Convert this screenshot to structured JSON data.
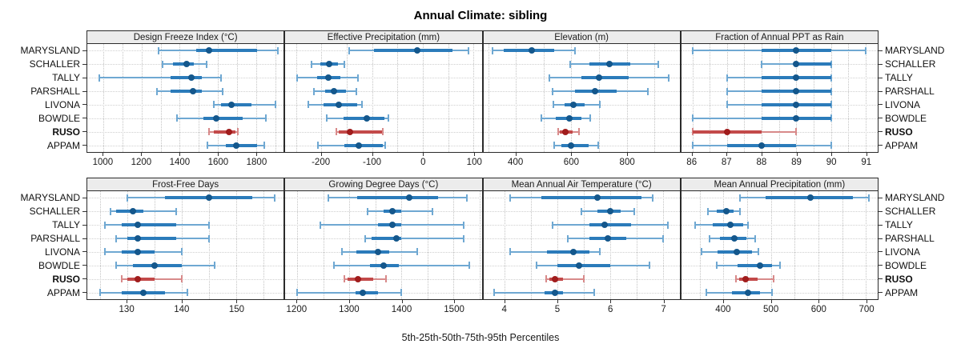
{
  "title": "Annual Climate: sibling",
  "caption": "5th-25th-50th-75th-95th Percentiles",
  "sites": [
    "MARYSLAND",
    "SCHALLER",
    "TALLY",
    "PARSHALL",
    "LIVONA",
    "BOWDLE",
    "RUSO",
    "APPAM"
  ],
  "highlight_site": "RUSO",
  "colors": {
    "blue_thin": "#6fa8d2",
    "blue_thick": "#2b7bba",
    "blue_dot": "#14578c",
    "red_thin": "#d88a8a",
    "red_thick": "#c34a4a",
    "red_dot": "#a01c1c",
    "strip_bg": "#ececec",
    "border": "#2b2b2b",
    "grid": "#c3c3c3"
  },
  "chart_data": {
    "type": "dotplot-percentiles",
    "percentile_labels": [
      "5th",
      "25th",
      "50th",
      "75th",
      "95th"
    ],
    "legend_note": "RUSO series highlighted in red; values are [5th,25th,50th,75th,95th] percentiles per site",
    "panels": [
      {
        "title": "Design Freeze Index (°C)",
        "row": "top",
        "xlim": [
          915,
          1945
        ],
        "ticks": [
          1000,
          1200,
          1400,
          1600,
          1800
        ],
        "minor_step": 100,
        "values": [
          [
            1290,
            1485,
            1555,
            1805,
            1915
          ],
          [
            1310,
            1365,
            1435,
            1475,
            1540
          ],
          [
            980,
            1350,
            1460,
            1515,
            1615
          ],
          [
            1280,
            1350,
            1470,
            1515,
            1625
          ],
          [
            1580,
            1615,
            1672,
            1775,
            1900
          ],
          [
            1385,
            1525,
            1590,
            1730,
            1850
          ],
          [
            1555,
            1580,
            1660,
            1690,
            1705
          ],
          [
            1545,
            1640,
            1695,
            1805,
            1845
          ]
        ]
      },
      {
        "title": "Effective Precipitation (mm)",
        "row": "top",
        "xlim": [
          -271,
          116
        ],
        "ticks": [
          -200,
          -100,
          0,
          100
        ],
        "minor_step": 50,
        "values": [
          [
            -145,
            -97,
            -11,
            59,
            90
          ],
          [
            -220,
            -202,
            -185,
            -168,
            -155
          ],
          [
            -247,
            -208,
            -186,
            -162,
            -128
          ],
          [
            -215,
            -193,
            -175,
            -151,
            -131
          ],
          [
            -226,
            -195,
            -166,
            -130,
            -120
          ],
          [
            -190,
            -156,
            -110,
            -76,
            -68
          ],
          [
            -170,
            -165,
            -144,
            -81,
            -79
          ],
          [
            -207,
            -154,
            -127,
            -79,
            -74
          ]
        ]
      },
      {
        "title": "Elevation (m)",
        "row": "top",
        "xlim": [
          282,
          991
        ],
        "ticks": [
          400,
          600,
          800
        ],
        "minor_step": 100,
        "values": [
          [
            315,
            357,
            456,
            537,
            613
          ],
          [
            595,
            666,
            737,
            813,
            915
          ],
          [
            520,
            637,
            700,
            808,
            950
          ],
          [
            533,
            613,
            684,
            764,
            876
          ],
          [
            535,
            574,
            608,
            647,
            703
          ],
          [
            491,
            544,
            593,
            637,
            669
          ],
          [
            552,
            559,
            577,
            603,
            627
          ],
          [
            538,
            564,
            600,
            661,
            698
          ]
        ]
      },
      {
        "title": "Fraction of Annual PPT as Rain",
        "row": "top",
        "xlim": [
          85.68,
          91.35
        ],
        "ticks": [
          86,
          87,
          88,
          89,
          90,
          91
        ],
        "minor_step": 0.5,
        "values": [
          [
            86,
            88,
            89,
            90,
            91
          ],
          [
            88,
            89,
            89,
            90,
            90
          ],
          [
            87,
            88,
            89,
            90,
            90
          ],
          [
            87,
            88,
            89,
            90,
            90
          ],
          [
            87,
            88,
            89,
            90,
            90
          ],
          [
            86,
            88,
            89,
            90,
            90
          ],
          [
            86,
            86,
            87,
            88,
            89
          ],
          [
            86,
            87,
            88,
            89,
            90
          ]
        ]
      },
      {
        "title": "Frost-Free Days",
        "row": "bottom",
        "xlim": [
          122.7,
          158.7
        ],
        "ticks": [
          130,
          140,
          150
        ],
        "minor_step": 5,
        "values": [
          [
            130,
            137,
            145,
            153,
            157
          ],
          [
            127,
            128,
            131,
            133,
            139
          ],
          [
            126,
            129,
            132,
            139,
            145
          ],
          [
            128,
            130,
            132,
            139,
            145
          ],
          [
            126,
            129,
            132,
            135,
            140
          ],
          [
            128,
            131,
            135,
            140,
            146
          ],
          [
            129,
            130,
            132,
            135,
            140
          ],
          [
            125,
            129,
            133,
            137,
            141
          ]
        ]
      },
      {
        "title": "Growing Degree Days (°C)",
        "row": "bottom",
        "xlim": [
          1177,
          1554
        ],
        "ticks": [
          1200,
          1300,
          1400,
          1500
        ],
        "minor_step": 50,
        "values": [
          [
            1260,
            1315,
            1415,
            1470,
            1525
          ],
          [
            1335,
            1365,
            1382,
            1400,
            1460
          ],
          [
            1245,
            1355,
            1382,
            1400,
            1520
          ],
          [
            1330,
            1342,
            1390,
            1400,
            1520
          ],
          [
            1285,
            1313,
            1355,
            1376,
            1430
          ],
          [
            1270,
            1340,
            1365,
            1395,
            1530
          ],
          [
            1290,
            1297,
            1317,
            1345,
            1370
          ],
          [
            1200,
            1312,
            1326,
            1355,
            1400
          ]
        ]
      },
      {
        "title": "Mean Annual Air Temperature (°C)",
        "row": "bottom",
        "xlim": [
          3.59,
          7.32
        ],
        "ticks": [
          4,
          5,
          6,
          7
        ],
        "minor_step": 0.5,
        "values": [
          [
            4.1,
            4.7,
            5.75,
            6.6,
            6.8
          ],
          [
            5.45,
            5.75,
            6.0,
            6.2,
            6.45
          ],
          [
            4.9,
            5.6,
            5.9,
            6.4,
            7.1
          ],
          [
            5.2,
            5.6,
            5.95,
            6.3,
            7.0
          ],
          [
            4.1,
            4.8,
            5.3,
            5.6,
            5.8
          ],
          [
            4.6,
            5.0,
            5.4,
            6.0,
            6.75
          ],
          [
            4.78,
            4.85,
            4.95,
            5.1,
            5.5
          ],
          [
            3.8,
            4.75,
            4.95,
            5.1,
            5.7
          ]
        ]
      },
      {
        "title": "Mean Annual Precipitation (mm)",
        "row": "bottom",
        "xlim": [
          311,
          725
        ],
        "ticks": [
          400,
          500,
          600,
          700
        ],
        "minor_step": 50,
        "values": [
          [
            435,
            488,
            583,
            673,
            706
          ],
          [
            367,
            385,
            406,
            421,
            435
          ],
          [
            340,
            377,
            414,
            441,
            452
          ],
          [
            371,
            393,
            423,
            449,
            466
          ],
          [
            353,
            388,
            428,
            460,
            474
          ],
          [
            386,
            430,
            477,
            502,
            519
          ],
          [
            427,
            433,
            447,
            471,
            506
          ],
          [
            363,
            418,
            452,
            477,
            503
          ]
        ]
      }
    ]
  }
}
